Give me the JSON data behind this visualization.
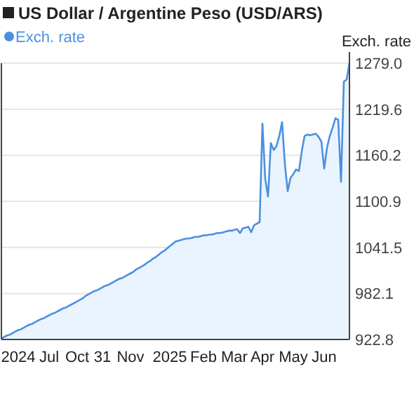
{
  "chart_data": {
    "type": "area",
    "title": "US Dollar / Argentine Peso (USD/ARS)",
    "ylabel": "Exch. rate",
    "legend": "top left",
    "grid": "y",
    "ylim": [
      922.8,
      1279.0
    ],
    "yticks": [
      922.8,
      982.1,
      1041.5,
      1100.9,
      1160.2,
      1219.6,
      {
        "value": 1279,
        "label": "1279.0"
      }
    ],
    "categories": [
      null,
      null,
      null,
      null,
      null,
      null,
      "2024",
      null,
      null,
      null,
      null,
      null,
      null,
      null,
      null,
      null,
      null,
      "Jul",
      null,
      null,
      null,
      null,
      null,
      null,
      null,
      null,
      null,
      "Oct",
      null,
      null,
      null,
      null,
      null,
      null,
      null,
      null,
      "31",
      null,
      null,
      null,
      null,
      null,
      null,
      null,
      null,
      null,
      "Nov",
      null,
      null,
      null,
      null,
      null,
      null,
      null,
      null,
      null,
      null,
      null,
      null,
      null,
      "2025",
      null,
      null,
      null,
      null,
      null,
      null,
      null,
      null,
      null,
      null,
      null,
      "Feb",
      null,
      null,
      null,
      null,
      null,
      null,
      null,
      null,
      null,
      null,
      "Mar",
      null,
      null,
      null,
      null,
      null,
      null,
      null,
      null,
      null,
      "Apr",
      null,
      null,
      null,
      null,
      null,
      null,
      null,
      null,
      null,
      null,
      "May",
      null,
      null,
      null,
      null,
      null,
      null,
      null,
      null,
      null,
      null,
      "Jun",
      null,
      null,
      null,
      null,
      null,
      null,
      null,
      null,
      null
    ],
    "series": [
      {
        "name": "Exch. rate",
        "color": "#4a90e2",
        "values": [
          924,
          926,
          928,
          929,
          931,
          933,
          935,
          936,
          938,
          940,
          942,
          943,
          945,
          947,
          949,
          950,
          952,
          954,
          956,
          957,
          959,
          961,
          963,
          964,
          966,
          968,
          970,
          972,
          974,
          976,
          979,
          981,
          983,
          985,
          986,
          988,
          990,
          992,
          993,
          995,
          997,
          999,
          1001,
          1002,
          1004,
          1006,
          1008,
          1010,
          1013,
          1015,
          1017,
          1019,
          1022,
          1024,
          1027,
          1029,
          1032,
          1035,
          1037,
          1040,
          1043,
          1046,
          1049,
          1050,
          1051,
          1052,
          1053,
          1053,
          1054,
          1055,
          1055,
          1056,
          1057,
          1057,
          1058,
          1058,
          1059,
          1060,
          1060,
          1061,
          1062,
          1063,
          1063,
          1064,
          1065,
          1060,
          1066,
          1067,
          1068,
          1061,
          1070,
          1072,
          1074,
          1201,
          1130,
          1107,
          1176,
          1167,
          1172,
          1185,
          1203,
          1149,
          1114,
          1131,
          1136,
          1142,
          1140,
          1165,
          1185,
          1187,
          1186,
          1187,
          1188,
          1184,
          1178,
          1143,
          1170,
          1185,
          1196,
          1208,
          1206,
          1126,
          1255,
          1258,
          1279
        ]
      }
    ]
  }
}
